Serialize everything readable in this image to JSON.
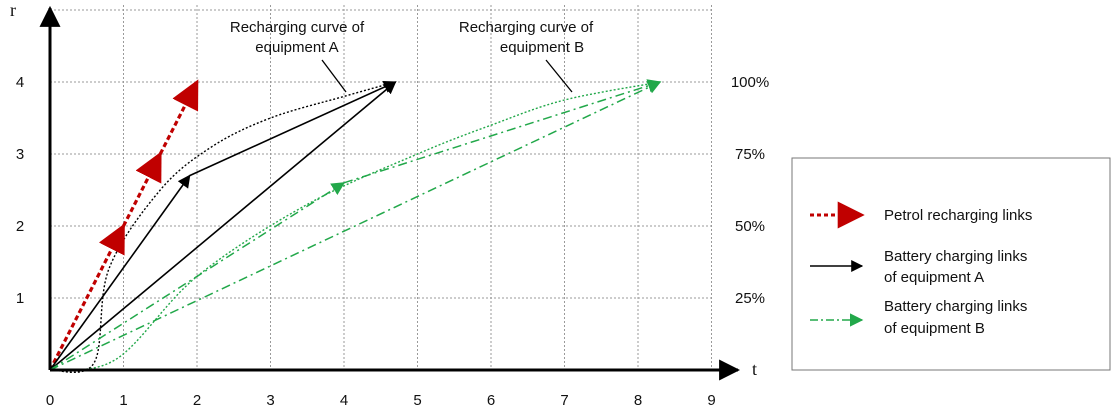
{
  "chart_data": {
    "type": "line",
    "xlabel": "t",
    "ylabel": "r",
    "xlim": [
      0,
      9
    ],
    "ylim": [
      0,
      4
    ],
    "x_ticks": [
      "0",
      "1",
      "2",
      "3",
      "4",
      "5",
      "6",
      "7",
      "8",
      "9"
    ],
    "y_ticks": [
      "1",
      "2",
      "3",
      "4"
    ],
    "right_ticks": [
      "25%",
      "50%",
      "75%",
      "100%"
    ],
    "grid": true,
    "legend": {
      "position": "right",
      "entries": [
        {
          "label": "Petrol recharging links",
          "color": "#c00000",
          "style": "dashed"
        },
        {
          "label": "Battery charging links of equipment A",
          "lines": [
            "Battery charging links",
            "of equipment A"
          ],
          "color": "#000000",
          "style": "solid"
        },
        {
          "label": "Battery charging links of equipment B",
          "lines": [
            "Battery charging links",
            "of equipment B"
          ],
          "color": "#22a84a",
          "style": "dash-dot"
        }
      ]
    },
    "annotations": [
      {
        "text": "Recharging curve of equipment A",
        "lines": [
          "Recharging curve of",
          "equipment A"
        ]
      },
      {
        "text": "Recharging curve of equipment B",
        "lines": [
          "Recharging curve of",
          "equipment B"
        ]
      }
    ],
    "curves": [
      {
        "name": "Recharging curve of equipment A",
        "color": "#000000",
        "points": [
          [
            0,
            0
          ],
          [
            0.6,
            0.1
          ],
          [
            0.8,
            1.4
          ],
          [
            1.5,
            2.5
          ],
          [
            2.2,
            3.1
          ],
          [
            3.0,
            3.5
          ],
          [
            4.0,
            3.8
          ],
          [
            4.7,
            4.0
          ]
        ]
      },
      {
        "name": "Recharging curve of equipment B",
        "color": "#22a84a",
        "points": [
          [
            0,
            0
          ],
          [
            0.9,
            0.15
          ],
          [
            2.0,
            1.3
          ],
          [
            3.5,
            2.3
          ],
          [
            5.0,
            3.0
          ],
          [
            6.0,
            3.4
          ],
          [
            7.0,
            3.75
          ],
          [
            8.3,
            4.0
          ]
        ]
      }
    ],
    "link_series": [
      {
        "name": "Petrol recharging links",
        "color": "#c00000",
        "style": "dashed",
        "links": [
          [
            [
              0,
              0
            ],
            [
              1,
              2
            ]
          ],
          [
            [
              1,
              2
            ],
            [
              1.5,
              3
            ]
          ],
          [
            [
              1.5,
              3
            ],
            [
              2,
              4
            ]
          ]
        ]
      },
      {
        "name": "Battery charging links of equipment A",
        "color": "#000000",
        "style": "solid",
        "links": [
          [
            [
              0,
              0
            ],
            [
              1.9,
              2.7
            ]
          ],
          [
            [
              1.9,
              2.7
            ],
            [
              4.7,
              4.0
            ]
          ],
          [
            [
              0,
              0
            ],
            [
              4.7,
              4.0
            ]
          ]
        ]
      },
      {
        "name": "Battery charging links of equipment B",
        "color": "#22a84a",
        "style": "dash-dot",
        "links": [
          [
            [
              0,
              0
            ],
            [
              4.0,
              2.6
            ]
          ],
          [
            [
              4.0,
              2.6
            ],
            [
              8.3,
              4.0
            ]
          ],
          [
            [
              0,
              0
            ],
            [
              8.3,
              4.0
            ]
          ]
        ]
      }
    ]
  }
}
